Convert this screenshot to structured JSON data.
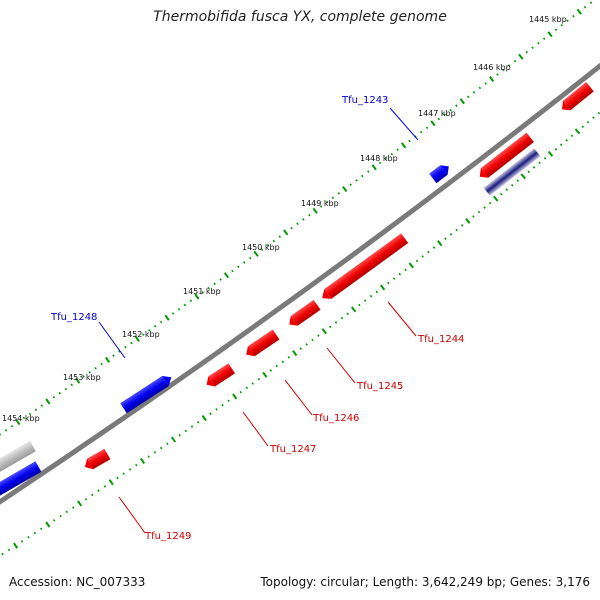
{
  "title": "Thermobifida fusca YX, complete genome",
  "footer": {
    "accession": "Accession: NC_007333",
    "info": "Topology: circular; Length: 3,642,249 bp; Genes: 3,176"
  },
  "scale_labels": [
    "1445 kbp",
    "1446 kbp",
    "1447 kbp",
    "1448 kbp",
    "1449 kbp",
    "1450 kbp",
    "1451 kbp",
    "1452 kbp",
    "1453 kbp",
    "1454 kbp"
  ],
  "gene_labels": {
    "Tfu_1243": "Tfu_1243",
    "Tfu_1248": "Tfu_1248",
    "Tfu_1244": "Tfu_1244",
    "Tfu_1245": "Tfu_1245",
    "Tfu_1246": "Tfu_1246",
    "Tfu_1247": "Tfu_1247",
    "Tfu_1249": "Tfu_1249"
  },
  "colors": {
    "forward_gene": "#0000ee",
    "reverse_gene": "#ee0000",
    "backbone": "#808080",
    "ticks": "#009900",
    "pseudo_gene": "#b8b8b8",
    "forward_label": "#0000cc",
    "reverse_label": "#cc0000"
  }
}
